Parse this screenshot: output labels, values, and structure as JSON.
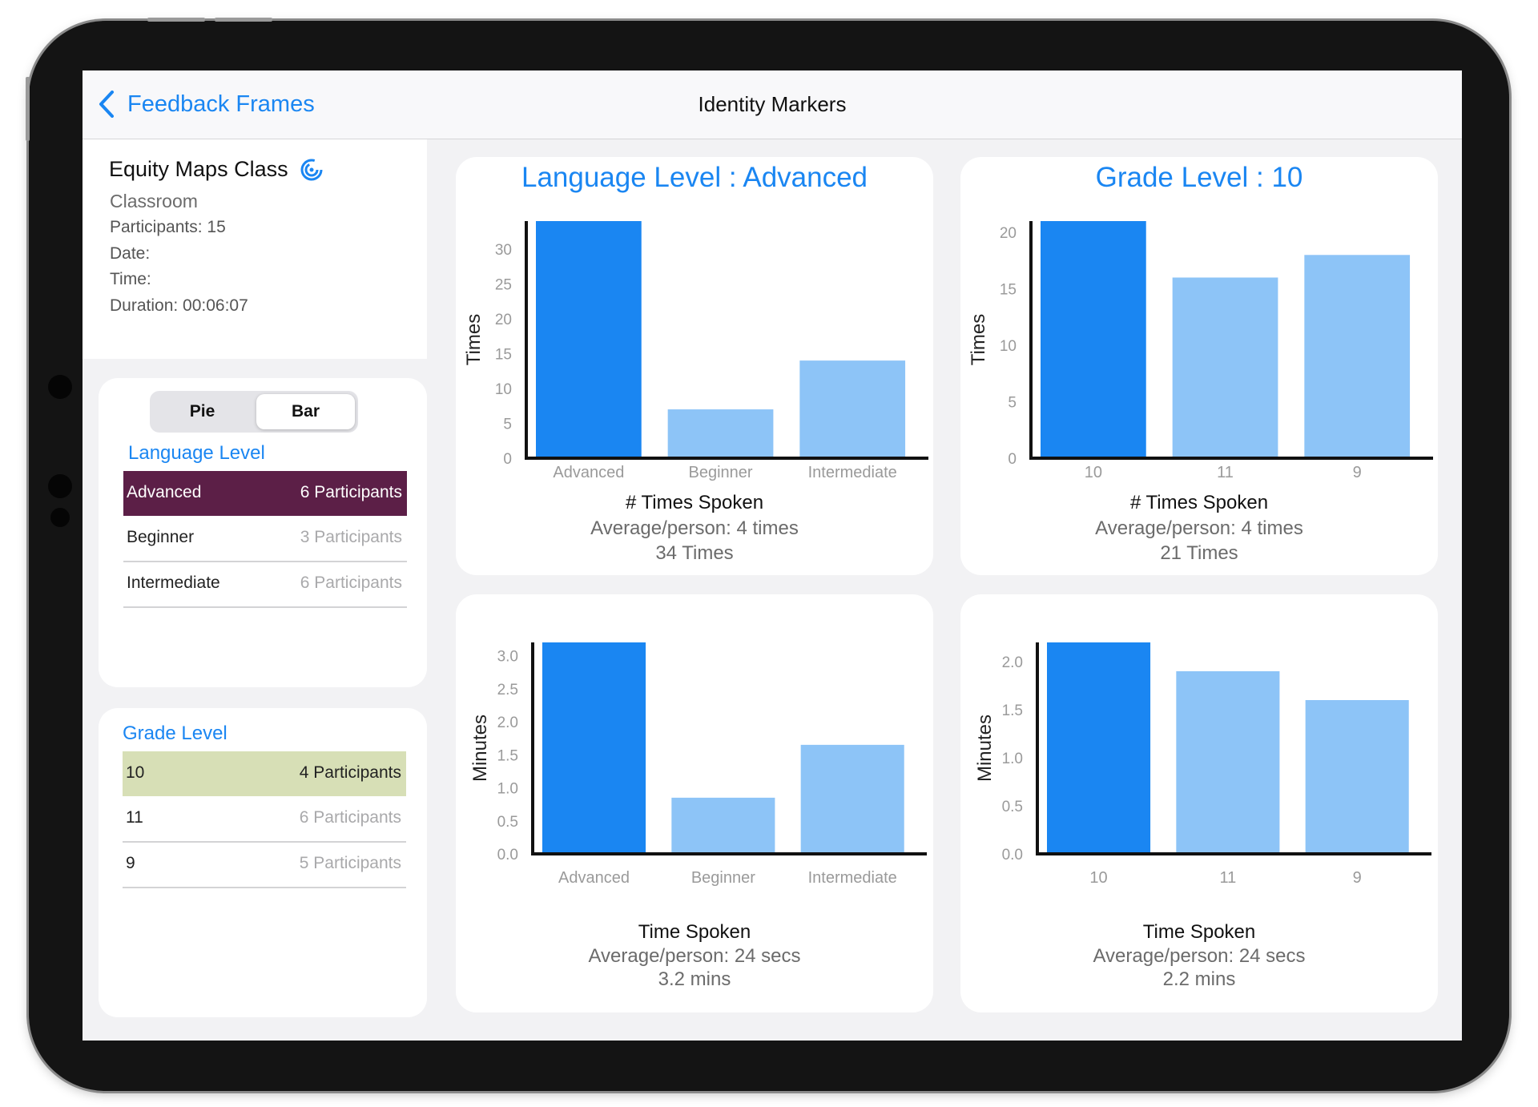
{
  "nav": {
    "back_label": "Feedback Frames",
    "title": "Identity Markers"
  },
  "session": {
    "class_name": "Equity Maps Class",
    "room": "Classroom",
    "participants": "Participants: 15",
    "date": "Date:",
    "time": "Time:",
    "duration": "Duration: 00:06:07"
  },
  "toggle": {
    "pie_label": "Pie",
    "bar_label": "Bar",
    "selected": "Bar"
  },
  "language_level": {
    "title": "Language Level",
    "rows": [
      {
        "label": "Advanced",
        "count": "6 Participants"
      },
      {
        "label": "Beginner",
        "count": "3 Participants"
      },
      {
        "label": "Intermediate",
        "count": "6 Participants"
      }
    ]
  },
  "grade_level": {
    "title": "Grade Level",
    "rows": [
      {
        "label": "10",
        "count": "4 Participants"
      },
      {
        "label": "11",
        "count": "6 Participants"
      },
      {
        "label": "9",
        "count": "5 Participants"
      }
    ]
  },
  "colors": {
    "accent": "#1a86f2",
    "bar_selected": "#1a86f2",
    "bar_other": "#8dc4f7",
    "sel_language": "#5c1f47",
    "sel_grade": "#d7dfb6"
  },
  "chart_data": [
    {
      "type": "bar",
      "title": "Language Level : Advanced",
      "categories": [
        "Advanced",
        "Beginner",
        "Intermediate"
      ],
      "values": [
        34,
        7,
        14
      ],
      "highlight": 0,
      "ylabel": "Times",
      "ylim": [
        0,
        34
      ],
      "yticks": [
        "0",
        "5",
        "10",
        "15",
        "20",
        "25",
        "30"
      ],
      "caption": "# Times Spoken",
      "average": "Average/person: 4 times",
      "total": "34 Times"
    },
    {
      "type": "bar",
      "title": "Grade Level : 10",
      "categories": [
        "10",
        "11",
        "9"
      ],
      "values": [
        21,
        16,
        18
      ],
      "highlight": 0,
      "ylabel": "Times",
      "ylim": [
        0,
        21
      ],
      "yticks": [
        "0",
        "5",
        "10",
        "15",
        "20"
      ],
      "caption": "# Times Spoken",
      "average": "Average/person: 4 times",
      "total": "21 Times"
    },
    {
      "type": "bar",
      "title": "",
      "categories": [
        "Advanced",
        "Beginner",
        "Intermediate"
      ],
      "values": [
        3.2,
        0.85,
        1.65
      ],
      "highlight": 0,
      "ylabel": "Minutes",
      "ylim": [
        0,
        3.2
      ],
      "yticks": [
        "0.0",
        "0.5",
        "1.0",
        "1.5",
        "2.0",
        "2.5",
        "3.0"
      ],
      "caption": "Time Spoken",
      "average": "Average/person: 24 secs",
      "total": "3.2 mins"
    },
    {
      "type": "bar",
      "title": "",
      "categories": [
        "10",
        "11",
        "9"
      ],
      "values": [
        2.2,
        1.9,
        1.6
      ],
      "highlight": 0,
      "ylabel": "Minutes",
      "ylim": [
        0,
        2.2
      ],
      "yticks": [
        "0.0",
        "0.5",
        "1.0",
        "1.5",
        "2.0"
      ],
      "caption": "Time Spoken",
      "average": "Average/person: 24 secs",
      "total": "2.2 mins"
    }
  ]
}
